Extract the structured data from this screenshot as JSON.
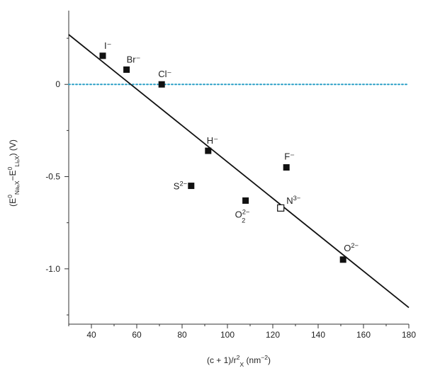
{
  "colors": {
    "axis": "#333333",
    "fit_line": "#111111",
    "reference_line": "#2a9fc6",
    "point_fill": "#111111",
    "open_point_fill": "#ffffff"
  },
  "chart_data": {
    "type": "scatter",
    "title": "",
    "xlabel": "(c + 1)/r²X (nm⁻²)",
    "ylabel": "(E⁰NaₓX − E⁰LiₓX) (V)",
    "xlim": [
      30,
      180
    ],
    "ylim": [
      -1.3,
      0.4
    ],
    "grid": false,
    "x_ticks": [
      40,
      60,
      80,
      100,
      120,
      140,
      160,
      180
    ],
    "y_ticks": [
      0,
      -0.5,
      -1.0
    ],
    "x_tick_labels": [
      "40",
      "60",
      "80",
      "100",
      "120",
      "140",
      "160",
      "180"
    ],
    "y_tick_labels": [
      "0",
      "-0.5",
      "-1.0"
    ],
    "reference_line": {
      "y": 0,
      "style": "dotted"
    },
    "fit_line": {
      "x": [
        30,
        180
      ],
      "y": [
        0.27,
        -1.21
      ]
    },
    "series": [
      {
        "marker": "filled-square",
        "points": [
          {
            "label": "I⁻",
            "x": 45,
            "y": 0.155
          },
          {
            "label": "Br⁻",
            "x": 55.5,
            "y": 0.08
          },
          {
            "label": "Cl⁻",
            "x": 71,
            "y": 0.0
          },
          {
            "label": "H⁻",
            "x": 91.5,
            "y": -0.36
          },
          {
            "label": "S²⁻",
            "x": 84,
            "y": -0.55
          },
          {
            "label": "O₂²⁻",
            "x": 108,
            "y": -0.63
          },
          {
            "label": "F⁻",
            "x": 126,
            "y": -0.45
          },
          {
            "label": "O²⁻",
            "x": 151,
            "y": -0.95
          }
        ]
      },
      {
        "marker": "open-square",
        "points": [
          {
            "label": "N³⁻",
            "x": 123.5,
            "y": -0.67
          }
        ]
      }
    ]
  }
}
